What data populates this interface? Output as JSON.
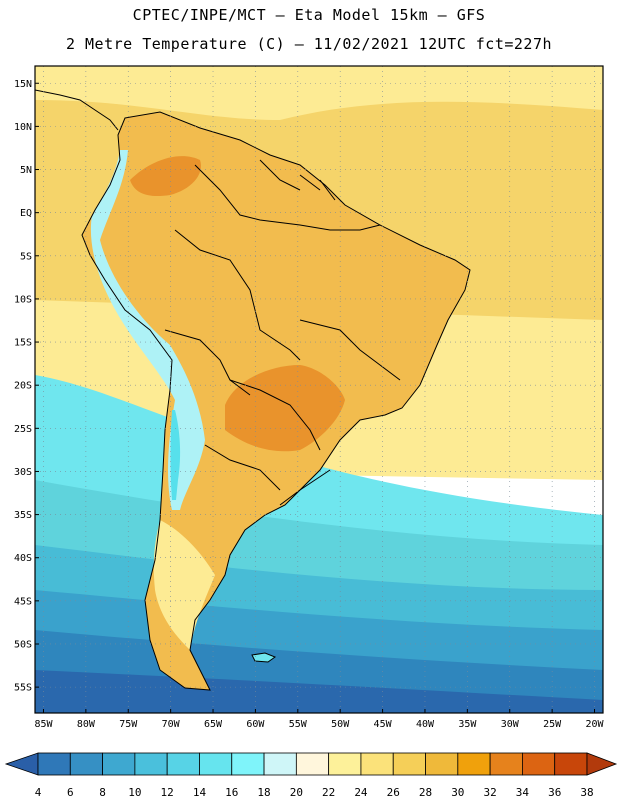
{
  "header": {
    "line1": "CPTEC/INPE/MCT –  Eta Model 15km – GFS",
    "line2": "2 Metre Temperature (C) – 11/02/2021 12UTC fct=227h"
  },
  "map": {
    "lon_range": [
      -86,
      -19
    ],
    "lat_range": [
      -58,
      17
    ],
    "lat_ticks": [
      {
        "value": 15,
        "label": "15N"
      },
      {
        "value": 10,
        "label": "10N"
      },
      {
        "value": 5,
        "label": "5N"
      },
      {
        "value": 0,
        "label": "EQ"
      },
      {
        "value": -5,
        "label": "5S"
      },
      {
        "value": -10,
        "label": "10S"
      },
      {
        "value": -15,
        "label": "15S"
      },
      {
        "value": -20,
        "label": "20S"
      },
      {
        "value": -25,
        "label": "25S"
      },
      {
        "value": -30,
        "label": "30S"
      },
      {
        "value": -35,
        "label": "35S"
      },
      {
        "value": -40,
        "label": "40S"
      },
      {
        "value": -45,
        "label": "45S"
      },
      {
        "value": -50,
        "label": "50S"
      },
      {
        "value": -55,
        "label": "55S"
      }
    ],
    "lon_ticks": [
      {
        "value": -85,
        "label": "85W"
      },
      {
        "value": -80,
        "label": "80W"
      },
      {
        "value": -75,
        "label": "75W"
      },
      {
        "value": -70,
        "label": "70W"
      },
      {
        "value": -65,
        "label": "65W"
      },
      {
        "value": -60,
        "label": "60W"
      },
      {
        "value": -55,
        "label": "55W"
      },
      {
        "value": -50,
        "label": "50W"
      },
      {
        "value": -45,
        "label": "45W"
      },
      {
        "value": -40,
        "label": "40W"
      },
      {
        "value": -35,
        "label": "35W"
      },
      {
        "value": -30,
        "label": "30W"
      },
      {
        "value": -25,
        "label": "25W"
      },
      {
        "value": -20,
        "label": "20W"
      }
    ],
    "colors": {
      "ocean_band_14": "#5fd3dc",
      "ocean_band_16": "#6fe6ee",
      "ocean_band_12": "#48bcd6",
      "ocean_band_10": "#3aa2cc",
      "ocean_band_8": "#2f86bd",
      "ocean_band_6": "#2a68ad",
      "tropical_ocean": "#f5d46a",
      "subtropical_ocean": "#fdeb94",
      "land_warm": "#f2bc4e",
      "land_hot": "#e9932c",
      "land_very_hot": "#d8711f",
      "andes_cold": "#57e0ec",
      "andes_mid": "#aef2f6"
    }
  },
  "colorbar": {
    "labels": [
      "4",
      "6",
      "8",
      "10",
      "12",
      "14",
      "16",
      "18",
      "20",
      "22",
      "24",
      "26",
      "28",
      "30",
      "32",
      "34",
      "36",
      "38"
    ],
    "colors": [
      "#2a5fa8",
      "#2f78b8",
      "#3690c4",
      "#3ea8d0",
      "#4ac0dc",
      "#57d3e6",
      "#66e4ee",
      "#7ff4fa",
      "#cff6f8",
      "#fff6dc",
      "#fdf19a",
      "#fbe27a",
      "#f5cf58",
      "#efb93a",
      "#f0a10c",
      "#e6821c",
      "#dc6412",
      "#c8460a",
      "#b23a0c"
    ]
  }
}
